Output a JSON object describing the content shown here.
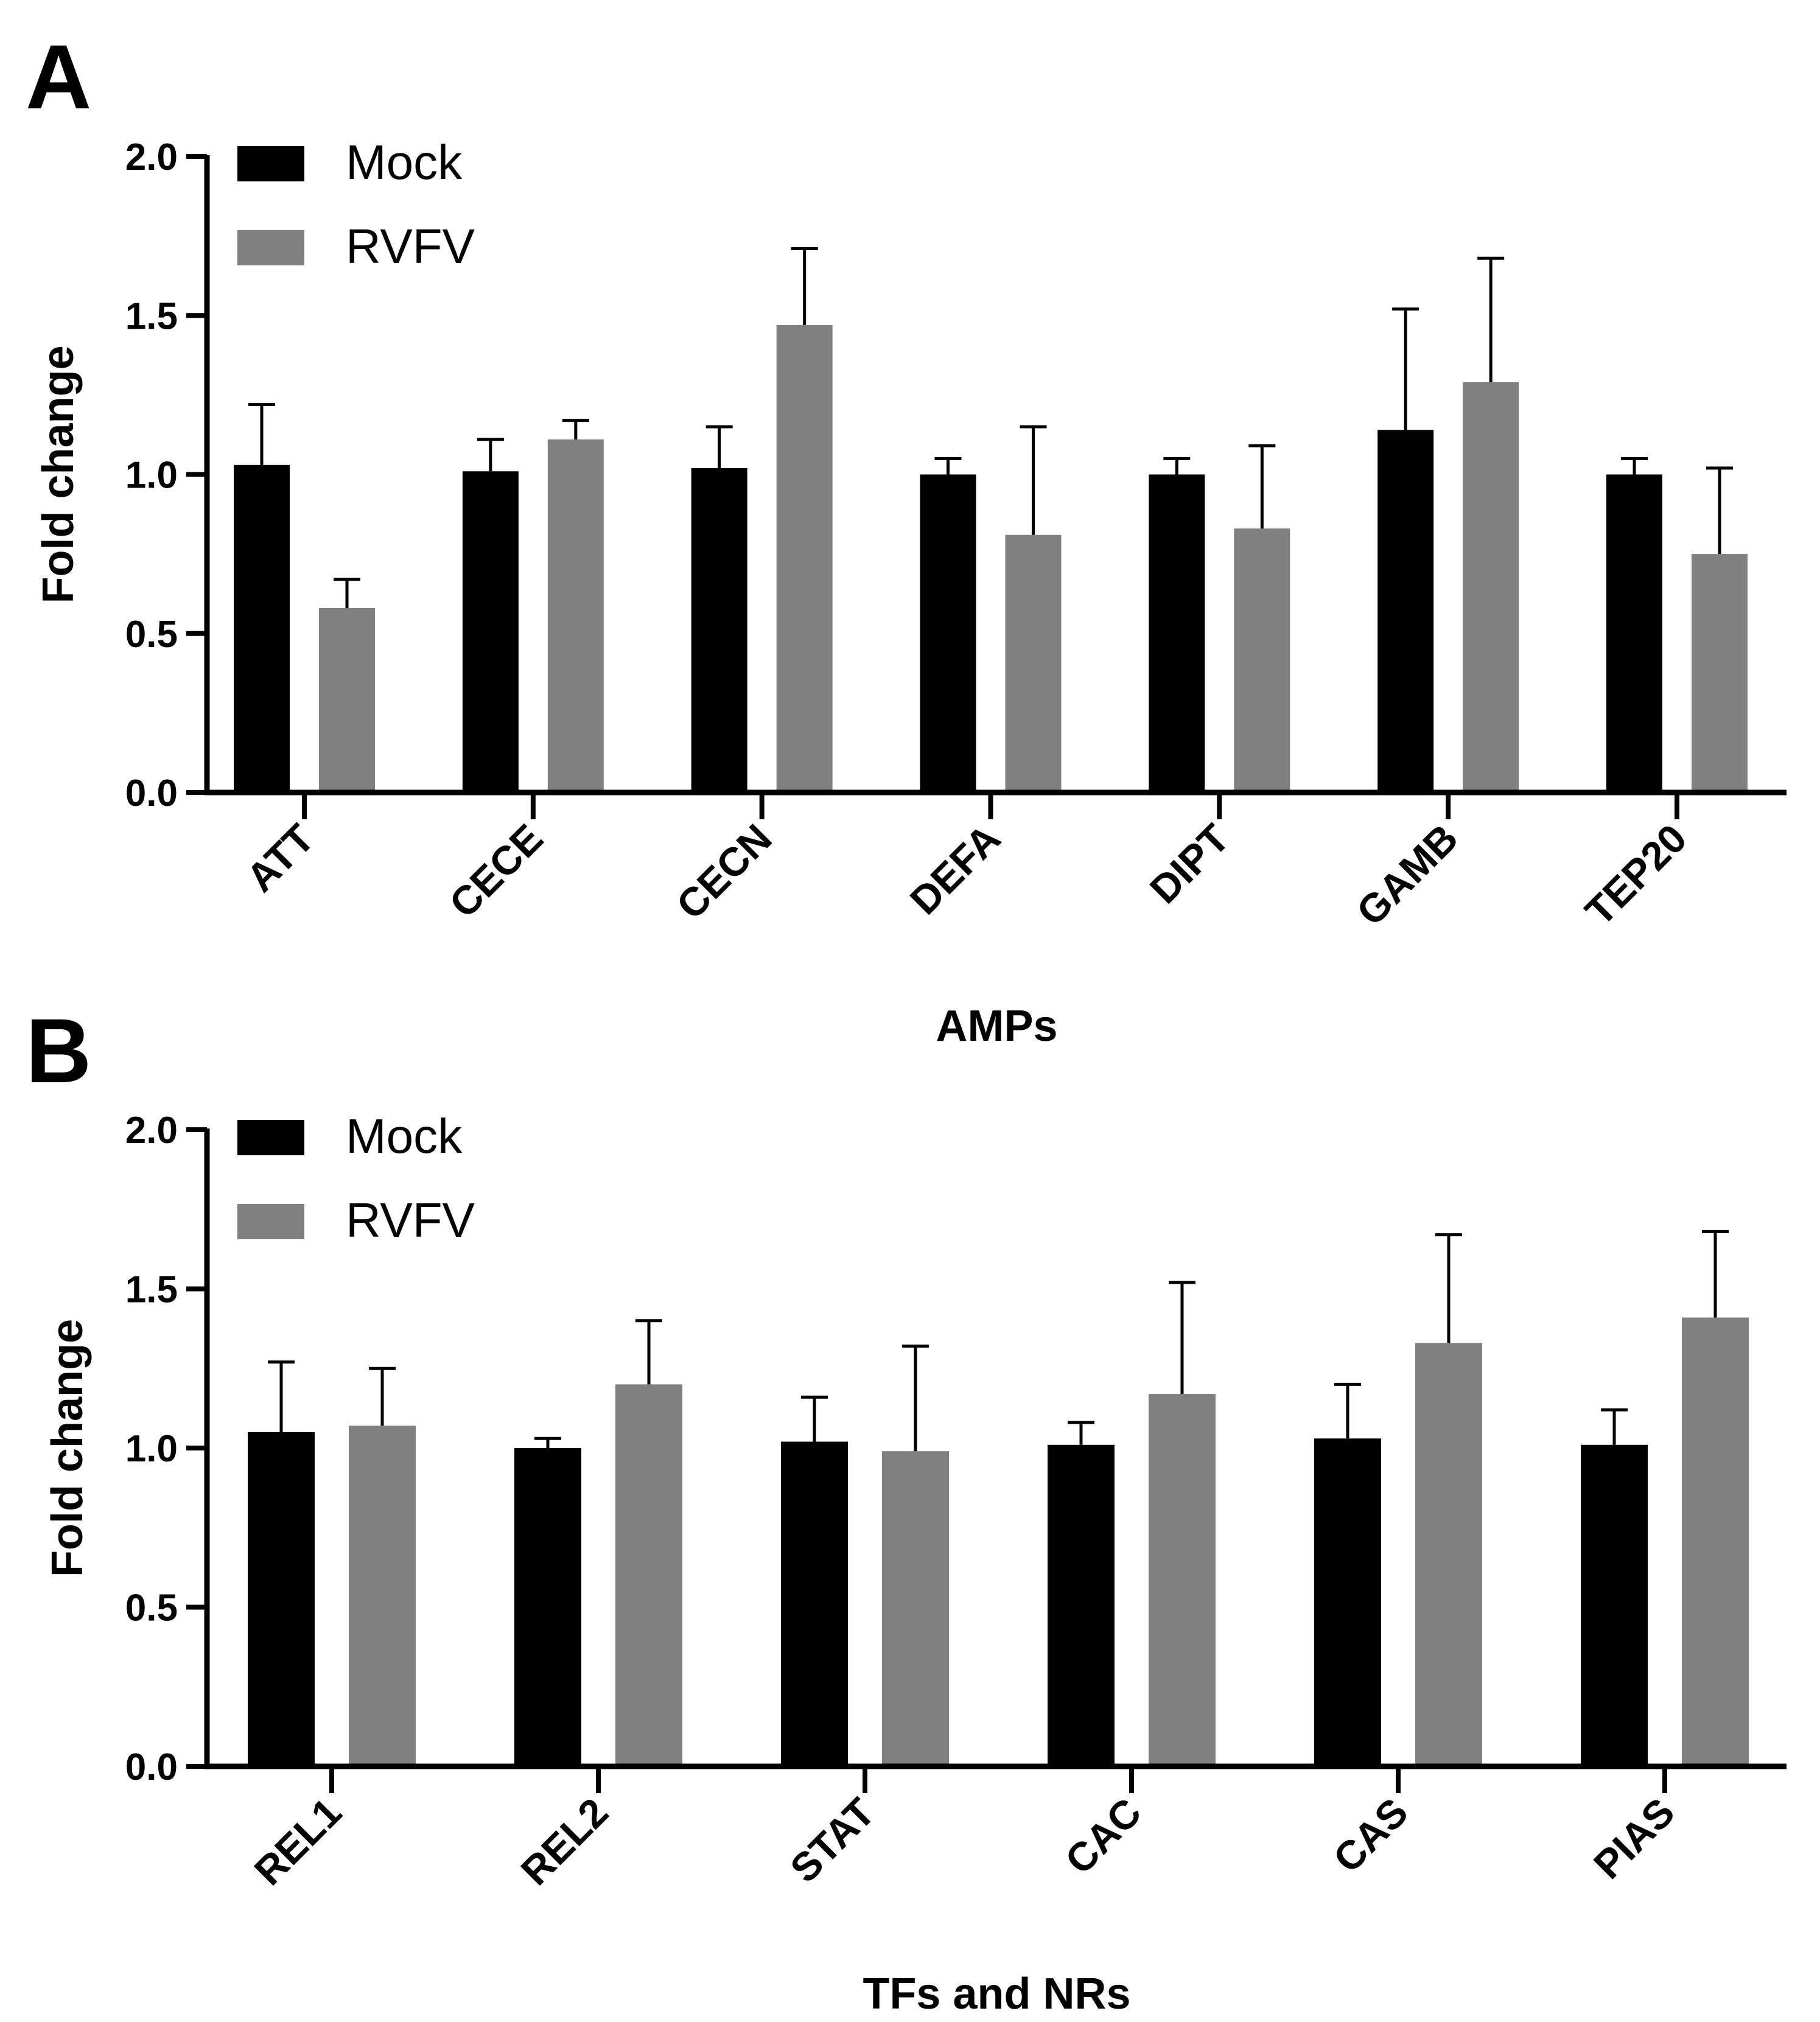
{
  "chart_data": [
    {
      "panel": "A",
      "type": "bar",
      "xlabel": "AMPs",
      "ylabel": "Fold change",
      "ylim": [
        0,
        2.0
      ],
      "yticks": [
        "0.0",
        "0.5",
        "1.0",
        "1.5",
        "2.0"
      ],
      "legend_position": "top-left",
      "categories": [
        "ATT",
        "CECE",
        "CECN",
        "DEFA",
        "DIPT",
        "GAMB",
        "TEP20"
      ],
      "series": [
        {
          "name": "Mock",
          "color": "#000000",
          "values": [
            1.03,
            1.01,
            1.02,
            1.0,
            1.0,
            1.14,
            1.0
          ],
          "errors": [
            0.19,
            0.1,
            0.13,
            0.05,
            0.05,
            0.38,
            0.05
          ]
        },
        {
          "name": "RVFV",
          "color": "#808080",
          "values": [
            0.58,
            1.11,
            1.47,
            0.81,
            0.83,
            1.29,
            0.75
          ],
          "errors": [
            0.09,
            0.06,
            0.24,
            0.34,
            0.26,
            0.39,
            0.27
          ]
        }
      ]
    },
    {
      "panel": "B",
      "type": "bar",
      "xlabel": "TFs and NRs",
      "ylabel": "Fold change",
      "ylim": [
        0,
        2.0
      ],
      "yticks": [
        "0.0",
        "0.5",
        "1.0",
        "1.5",
        "2.0"
      ],
      "legend_position": "top-left",
      "categories": [
        "REL1",
        "REL2",
        "STAT",
        "CAC",
        "CAS",
        "PIAS"
      ],
      "series": [
        {
          "name": "Mock",
          "color": "#000000",
          "values": [
            1.05,
            1.0,
            1.02,
            1.01,
            1.03,
            1.01
          ],
          "errors": [
            0.22,
            0.03,
            0.14,
            0.07,
            0.17,
            0.11
          ]
        },
        {
          "name": "RVFV",
          "color": "#808080",
          "values": [
            1.07,
            1.2,
            0.99,
            1.17,
            1.33,
            1.41
          ],
          "errors": [
            0.18,
            0.2,
            0.33,
            0.35,
            0.34,
            0.27
          ]
        }
      ]
    }
  ]
}
